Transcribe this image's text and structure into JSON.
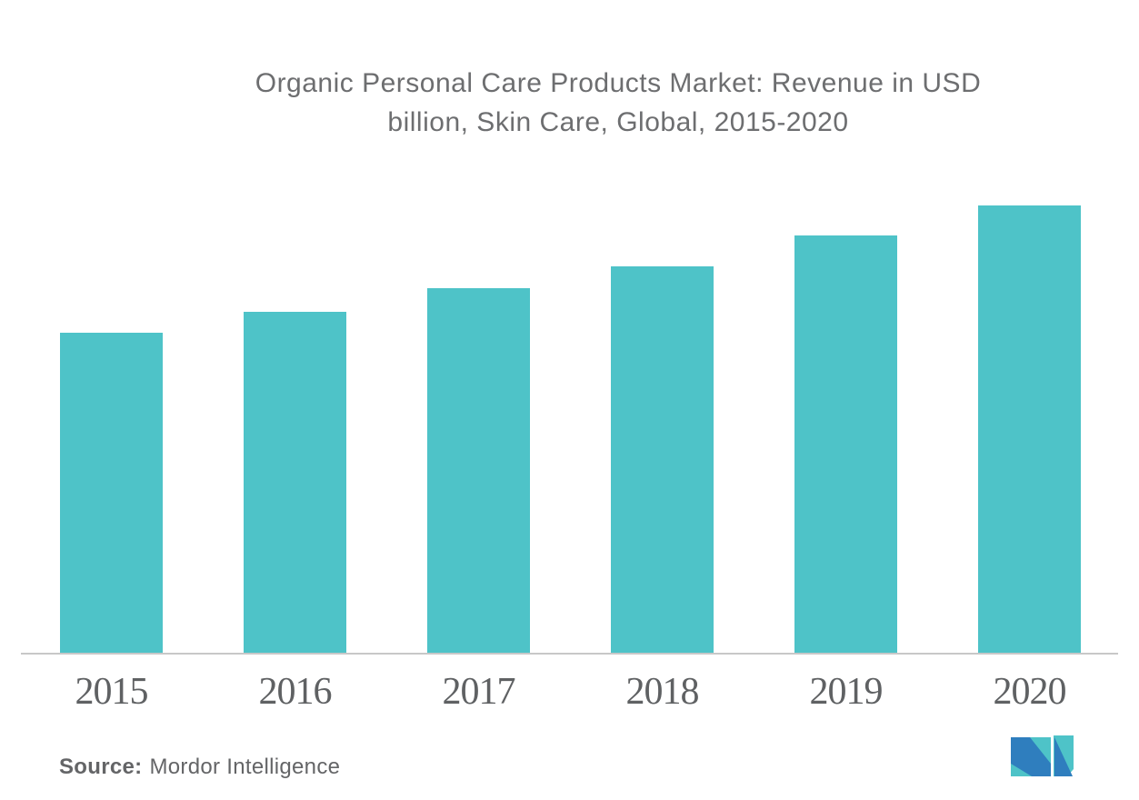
{
  "title": {
    "line1": "Organic Personal Care Products Market: Revenue in USD",
    "line2": "billion, Skin Care, Global, 2015-2020"
  },
  "source": {
    "label": "Source:",
    "name": "Mordor Intelligence"
  },
  "logo": {
    "name": "Mordor Intelligence logo"
  },
  "colors": {
    "bar": "#4EC3C8",
    "axis": "#C8C8C8",
    "title_text": "#6D6E70",
    "year_text": "#5F6163",
    "source_text": "#646567",
    "logo_blue": "#2F7EBE",
    "logo_teal": "#4EC3C8"
  },
  "chart_data": {
    "type": "bar",
    "title": "Organic Personal Care Products Market: Revenue in USD billion, Skin Care, Global, 2015-2020",
    "categories": [
      "2015",
      "2016",
      "2017",
      "2018",
      "2019",
      "2020"
    ],
    "values": [
      71.6,
      76.3,
      81.5,
      86.4,
      93.3,
      100
    ],
    "value_note": "No y-axis labels or gridlines are shown; values are relative bar heights indexed to 2020 = 100",
    "xlabel": "",
    "ylabel": "Revenue in USD billion",
    "ylim": [
      0,
      100
    ],
    "grid": false,
    "legend": null,
    "bar_color": "#4EC3C8",
    "axis_line_color": "#C8C8C8"
  }
}
